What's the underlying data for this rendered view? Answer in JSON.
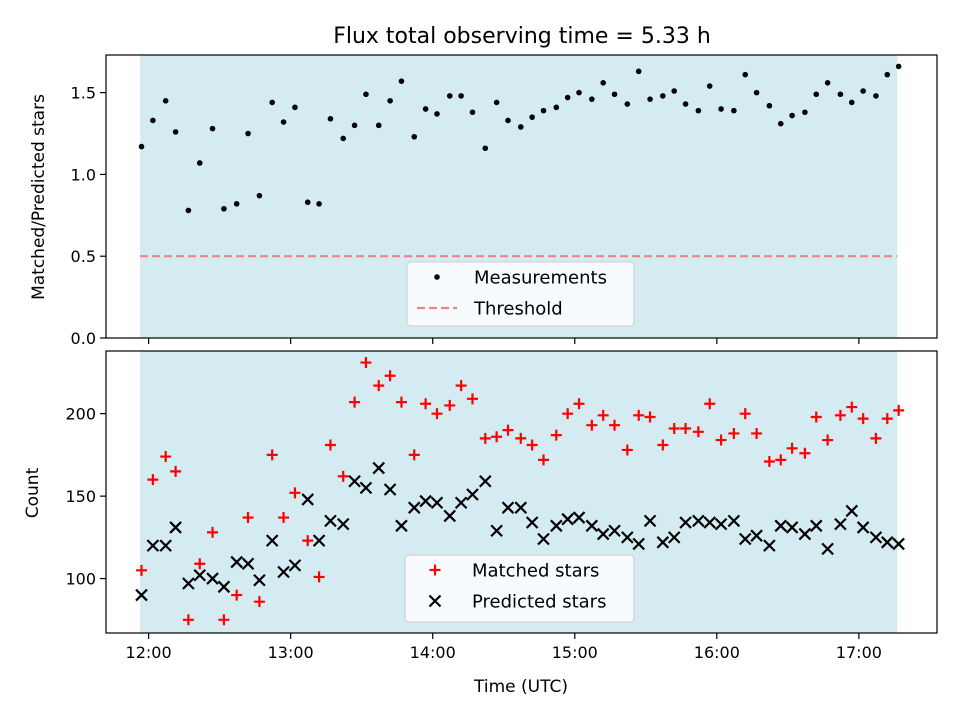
{
  "chart_data": [
    {
      "type": "scatter",
      "title": "Flux total observing time = 5.33 h",
      "ylabel": "Matched/Predicted stars",
      "xlabel": "",
      "x_unit": "hours (UTC)",
      "xlim": [
        11.7,
        17.55
      ],
      "ylim": [
        0,
        1.73
      ],
      "yticks": [
        0.0,
        0.5,
        1.0,
        1.5
      ],
      "ytick_labels": [
        "0.0",
        "0.5",
        "1.0",
        "1.5"
      ],
      "xticks": [
        12,
        13,
        14,
        15,
        16,
        17
      ],
      "shaded_span": [
        11.94,
        17.27
      ],
      "shade_color": "#d4ebf2",
      "legend": {
        "loc": "lower center",
        "entries": [
          "Measurements",
          "Threshold"
        ]
      },
      "threshold": {
        "name": "Threshold",
        "y": 0.5,
        "color": "#f08080",
        "style": "dashed"
      },
      "series": [
        {
          "name": "Measurements",
          "marker": "dot",
          "color": "#000000",
          "x": [
            11.95,
            12.03,
            12.12,
            12.19,
            12.28,
            12.36,
            12.45,
            12.53,
            12.62,
            12.7,
            12.78,
            12.87,
            12.95,
            13.03,
            13.12,
            13.2,
            13.28,
            13.37,
            13.45,
            13.53,
            13.62,
            13.7,
            13.78,
            13.87,
            13.95,
            14.03,
            14.12,
            14.2,
            14.28,
            14.37,
            14.45,
            14.53,
            14.62,
            14.7,
            14.78,
            14.87,
            14.95,
            15.03,
            15.12,
            15.2,
            15.28,
            15.37,
            15.45,
            15.53,
            15.62,
            15.7,
            15.78,
            15.87,
            15.95,
            16.03,
            16.12,
            16.2,
            16.28,
            16.37,
            16.45,
            16.53,
            16.62,
            16.7,
            16.78,
            16.87,
            16.95,
            17.03,
            17.12,
            17.2,
            17.28
          ],
          "y": [
            1.17,
            1.33,
            1.45,
            1.26,
            0.78,
            1.07,
            1.28,
            0.79,
            0.82,
            1.25,
            0.87,
            1.44,
            1.32,
            1.41,
            0.83,
            0.82,
            1.34,
            1.22,
            1.3,
            1.49,
            1.3,
            1.45,
            1.57,
            1.23,
            1.4,
            1.37,
            1.48,
            1.48,
            1.38,
            1.16,
            1.44,
            1.33,
            1.29,
            1.35,
            1.39,
            1.41,
            1.47,
            1.5,
            1.46,
            1.56,
            1.49,
            1.43,
            1.63,
            1.46,
            1.48,
            1.51,
            1.43,
            1.39,
            1.54,
            1.4,
            1.39,
            1.61,
            1.5,
            1.42,
            1.31,
            1.36,
            1.38,
            1.49,
            1.56,
            1.49,
            1.44,
            1.51,
            1.48,
            1.61,
            1.66
          ]
        }
      ]
    },
    {
      "type": "scatter",
      "title": "",
      "ylabel": "Count",
      "xlabel": "Time (UTC)",
      "x_unit": "hours (UTC)",
      "xlim": [
        11.7,
        17.55
      ],
      "ylim": [
        67,
        238
      ],
      "yticks": [
        100,
        150,
        200
      ],
      "ytick_labels": [
        "100",
        "150",
        "200"
      ],
      "xticks": [
        12,
        13,
        14,
        15,
        16,
        17
      ],
      "xtick_labels": [
        "12:00",
        "13:00",
        "14:00",
        "15:00",
        "16:00",
        "17:00"
      ],
      "shaded_span": [
        11.94,
        17.27
      ],
      "shade_color": "#d4ebf2",
      "legend": {
        "loc": "lower center",
        "entries": [
          "Matched stars",
          "Predicted stars"
        ]
      },
      "series": [
        {
          "name": "Matched stars",
          "marker": "plus",
          "color": "#ff0000",
          "x": [
            11.95,
            12.03,
            12.12,
            12.19,
            12.28,
            12.36,
            12.45,
            12.53,
            12.62,
            12.7,
            12.78,
            12.87,
            12.95,
            13.03,
            13.12,
            13.2,
            13.28,
            13.37,
            13.45,
            13.53,
            13.62,
            13.7,
            13.78,
            13.87,
            13.95,
            14.03,
            14.12,
            14.2,
            14.28,
            14.37,
            14.45,
            14.53,
            14.62,
            14.7,
            14.78,
            14.87,
            14.95,
            15.03,
            15.12,
            15.2,
            15.28,
            15.37,
            15.45,
            15.53,
            15.62,
            15.7,
            15.78,
            15.87,
            15.95,
            16.03,
            16.12,
            16.2,
            16.28,
            16.37,
            16.45,
            16.53,
            16.62,
            16.7,
            16.78,
            16.87,
            16.95,
            17.03,
            17.12,
            17.2,
            17.28
          ],
          "y": [
            105,
            160,
            174,
            165,
            75,
            109,
            128,
            75,
            90,
            137,
            86,
            175,
            137,
            152,
            123,
            101,
            181,
            162,
            207,
            231,
            217,
            223,
            207,
            175,
            206,
            200,
            205,
            217,
            209,
            185,
            186,
            190,
            185,
            181,
            172,
            187,
            200,
            206,
            193,
            199,
            193,
            178,
            199,
            198,
            181,
            191,
            191,
            189,
            206,
            184,
            188,
            200,
            188,
            171,
            172,
            179,
            176,
            198,
            184,
            199,
            204,
            197,
            185,
            197,
            202
          ]
        },
        {
          "name": "Predicted stars",
          "marker": "x",
          "color": "#000000",
          "x": [
            11.95,
            12.03,
            12.12,
            12.19,
            12.28,
            12.36,
            12.45,
            12.53,
            12.62,
            12.7,
            12.78,
            12.87,
            12.95,
            13.03,
            13.12,
            13.2,
            13.28,
            13.37,
            13.45,
            13.53,
            13.62,
            13.7,
            13.78,
            13.87,
            13.95,
            14.03,
            14.12,
            14.2,
            14.28,
            14.37,
            14.45,
            14.53,
            14.62,
            14.7,
            14.78,
            14.87,
            14.95,
            15.03,
            15.12,
            15.2,
            15.28,
            15.37,
            15.45,
            15.53,
            15.62,
            15.7,
            15.78,
            15.87,
            15.95,
            16.03,
            16.12,
            16.2,
            16.28,
            16.37,
            16.45,
            16.53,
            16.62,
            16.7,
            16.78,
            16.87,
            16.95,
            17.03,
            17.12,
            17.2,
            17.28
          ],
          "y": [
            90,
            120,
            120,
            131,
            97,
            102,
            100,
            95,
            110,
            109,
            99,
            123,
            104,
            108,
            148,
            123,
            135,
            133,
            159,
            155,
            167,
            154,
            132,
            143,
            147,
            146,
            138,
            146,
            151,
            159,
            129,
            143,
            143,
            134,
            124,
            132,
            136,
            137,
            132,
            127,
            129,
            125,
            121,
            135,
            122,
            125,
            134,
            135,
            134,
            133,
            135,
            124,
            126,
            120,
            132,
            131,
            127,
            132,
            118,
            133,
            141,
            131,
            125,
            122,
            121
          ]
        }
      ]
    }
  ]
}
